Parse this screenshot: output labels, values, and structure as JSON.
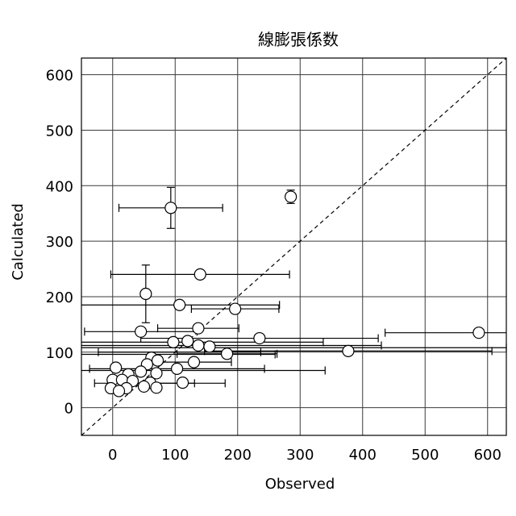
{
  "chart_data": {
    "type": "scatter",
    "title": "線膨張係数",
    "xlabel": "Observed",
    "ylabel": "Calculated",
    "xlim": [
      -50,
      630
    ],
    "ylim": [
      -50,
      630
    ],
    "xticks": [
      0,
      100,
      200,
      300,
      400,
      500,
      600
    ],
    "yticks": [
      0,
      100,
      200,
      300,
      400,
      500,
      600
    ],
    "grid": true,
    "identity_line": true,
    "points": [
      {
        "x": 93,
        "y": 360,
        "xerr": 83,
        "yerr": 37
      },
      {
        "x": 285,
        "y": 380,
        "xerr": 0,
        "yerr": 12
      },
      {
        "x": 140,
        "y": 240,
        "xerr": 143,
        "yerr": 0
      },
      {
        "x": 53,
        "y": 205,
        "xerr": 0,
        "yerr": 52
      },
      {
        "x": 107,
        "y": 185,
        "xerr": 160,
        "yerr": 0
      },
      {
        "x": 196,
        "y": 178,
        "xerr": 70,
        "yerr": 0
      },
      {
        "x": 45,
        "y": 137,
        "xerr": 90,
        "yerr": 0
      },
      {
        "x": 137,
        "y": 143,
        "xerr": 65,
        "yerr": 0
      },
      {
        "x": 586,
        "y": 135,
        "xerr": 150,
        "yerr": 0
      },
      {
        "x": 235,
        "y": 125,
        "xerr": 190,
        "yerr": 0
      },
      {
        "x": 97,
        "y": 118,
        "xerr": 240,
        "yerr": 0
      },
      {
        "x": 120,
        "y": 120,
        "xerr": 0,
        "yerr": 0
      },
      {
        "x": 137,
        "y": 112,
        "xerr": 0,
        "yerr": 0
      },
      {
        "x": 155,
        "y": 110,
        "xerr": 0,
        "yerr": 0
      },
      {
        "x": 377,
        "y": 102,
        "xerr": 230,
        "yerr": 0
      },
      {
        "x": 183,
        "y": 97,
        "xerr": 80,
        "yerr": 0
      },
      {
        "x": 62,
        "y": 90,
        "xerr": 0,
        "yerr": 0
      },
      {
        "x": 72,
        "y": 85,
        "xerr": 0,
        "yerr": 0
      },
      {
        "x": 55,
        "y": 78,
        "xerr": 0,
        "yerr": 0
      },
      {
        "x": 130,
        "y": 82,
        "xerr": 60,
        "yerr": 0
      },
      {
        "x": 5,
        "y": 72,
        "xerr": 0,
        "yerr": 0
      },
      {
        "x": 103,
        "y": 70,
        "xerr": 140,
        "yerr": 0
      },
      {
        "x": 45,
        "y": 65,
        "xerr": 0,
        "yerr": 0
      },
      {
        "x": 70,
        "y": 62,
        "xerr": 0,
        "yerr": 0
      },
      {
        "x": 25,
        "y": 60,
        "xerr": 0,
        "yerr": 0
      },
      {
        "x": 0,
        "y": 50,
        "xerr": 0,
        "yerr": 0
      },
      {
        "x": 15,
        "y": 50,
        "xerr": 0,
        "yerr": 0
      },
      {
        "x": 32,
        "y": 48,
        "xerr": 0,
        "yerr": 0
      },
      {
        "x": 60,
        "y": 45,
        "xerr": 0,
        "yerr": 0
      },
      {
        "x": 112,
        "y": 45,
        "xerr": 0,
        "yerr": 0
      },
      {
        "x": 50,
        "y": 38,
        "xerr": 0,
        "yerr": 0
      },
      {
        "x": 70,
        "y": 36,
        "xerr": 0,
        "yerr": 0
      },
      {
        "x": 22,
        "y": 35,
        "xerr": 0,
        "yerr": 0
      },
      {
        "x": -3,
        "y": 35,
        "xerr": 0,
        "yerr": 0
      },
      {
        "x": 10,
        "y": 30,
        "xerr": 0,
        "yerr": 0
      }
    ],
    "extra_error_bars": [
      {
        "x": 50,
        "y": 112,
        "xerr": 380,
        "yerr": 0
      },
      {
        "x": 80,
        "y": 108,
        "xerr": 550,
        "yerr": 0
      },
      {
        "x": 107,
        "y": 100,
        "xerr": 130,
        "yerr": 0
      },
      {
        "x": 90,
        "y": 96,
        "xerr": 170,
        "yerr": 0
      },
      {
        "x": 100,
        "y": 67,
        "xerr": 240,
        "yerr": 0
      },
      {
        "x": 90,
        "y": 44,
        "xerr": 90,
        "yerr": 0
      },
      {
        "x": 51,
        "y": 44,
        "xerr": 80,
        "yerr": 0
      }
    ]
  }
}
